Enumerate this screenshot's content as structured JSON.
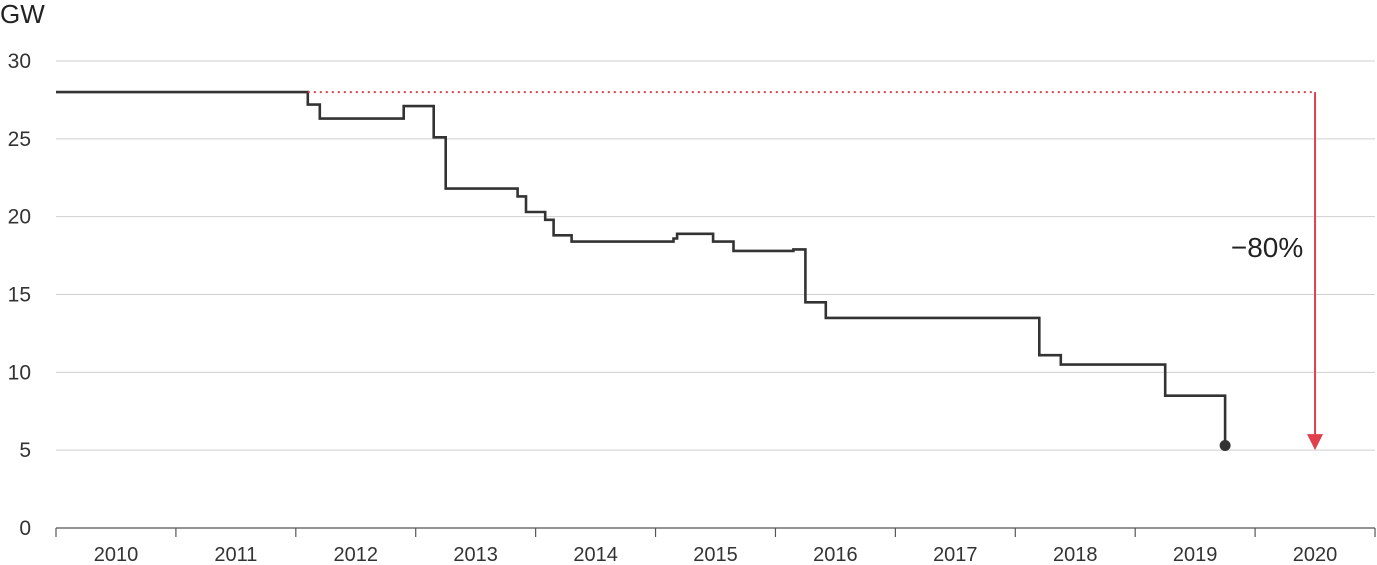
{
  "chart_data": {
    "type": "line",
    "title": "",
    "ylabel": "GW",
    "xlabel": "",
    "ylim": [
      0,
      30
    ],
    "xlim": [
      2009.5,
      2020.5
    ],
    "yticks": [
      "0",
      "5",
      "10",
      "15",
      "20",
      "25",
      "30"
    ],
    "xticks": [
      "2010",
      "2011",
      "2012",
      "2013",
      "2014",
      "2015",
      "2016",
      "2017",
      "2018",
      "2019",
      "2020"
    ],
    "grid": "horizontal",
    "series": [
      {
        "style": "step",
        "color": "#333333",
        "points": [
          [
            2009.5,
            28.0
          ],
          [
            2011.6,
            28.0
          ],
          [
            2011.6,
            27.2
          ],
          [
            2011.7,
            27.2
          ],
          [
            2011.7,
            26.3
          ],
          [
            2012.4,
            26.3
          ],
          [
            2012.4,
            27.1
          ],
          [
            2012.65,
            27.1
          ],
          [
            2012.65,
            25.1
          ],
          [
            2012.75,
            25.1
          ],
          [
            2012.75,
            21.8
          ],
          [
            2013.35,
            21.8
          ],
          [
            2013.35,
            21.3
          ],
          [
            2013.42,
            21.3
          ],
          [
            2013.42,
            20.3
          ],
          [
            2013.58,
            20.3
          ],
          [
            2013.58,
            19.8
          ],
          [
            2013.65,
            19.8
          ],
          [
            2013.65,
            18.8
          ],
          [
            2013.8,
            18.8
          ],
          [
            2013.8,
            18.4
          ],
          [
            2014.65,
            18.4
          ],
          [
            2014.65,
            18.6
          ],
          [
            2014.68,
            18.6
          ],
          [
            2014.68,
            18.9
          ],
          [
            2014.98,
            18.9
          ],
          [
            2014.98,
            18.4
          ],
          [
            2015.15,
            18.4
          ],
          [
            2015.15,
            17.8
          ],
          [
            2015.65,
            17.8
          ],
          [
            2015.65,
            17.9
          ],
          [
            2015.75,
            17.9
          ],
          [
            2015.75,
            14.5
          ],
          [
            2015.92,
            14.5
          ],
          [
            2015.92,
            13.5
          ],
          [
            2017.7,
            13.5
          ],
          [
            2017.7,
            11.1
          ],
          [
            2017.88,
            11.1
          ],
          [
            2017.88,
            10.5
          ],
          [
            2018.25,
            10.5
          ],
          [
            2018.25,
            10.5
          ],
          [
            2018.75,
            10.5
          ],
          [
            2018.75,
            8.5
          ],
          [
            2019.25,
            8.5
          ],
          [
            2019.25,
            5.3
          ]
        ],
        "end_marker": [
          2019.25,
          5.3
        ]
      }
    ],
    "reference": {
      "from_year": 2011.6,
      "to_year": 2020.0,
      "start_value": 28.0,
      "end_value": 5.0,
      "color": "#e0404c"
    },
    "annotations": [
      {
        "text": "−80%",
        "x": 2019.7,
        "y": 17.4
      }
    ]
  }
}
